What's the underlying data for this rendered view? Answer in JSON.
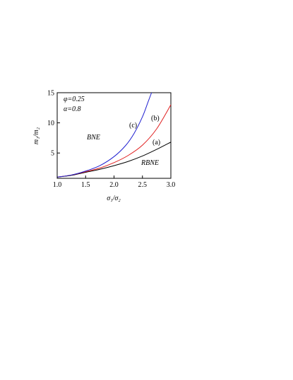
{
  "chart_data": {
    "type": "line",
    "xlabel": "σ₁/σ₂",
    "ylabel": "m₁/m₂",
    "xlim": [
      1.0,
      3.0
    ],
    "ylim": [
      0.8,
      15
    ],
    "xticks": [
      "1.0",
      "1.5",
      "2.0",
      "2.5",
      "3.0"
    ],
    "yticks": [
      "5",
      "10",
      "15"
    ],
    "grid": false,
    "params": [
      "φ=0.25",
      "α=0.8"
    ],
    "regions": [
      "BNE",
      "RBNE"
    ],
    "series": [
      {
        "name": "(a)",
        "color": "#000000",
        "x": [
          1.0,
          1.25,
          1.5,
          1.75,
          2.0,
          2.25,
          2.5,
          2.75,
          3.0
        ],
        "y": [
          1.0,
          1.3,
          1.8,
          2.3,
          2.9,
          3.6,
          4.5,
          5.6,
          6.8
        ]
      },
      {
        "name": "(b)",
        "color": "#e02020",
        "x": [
          1.0,
          1.25,
          1.5,
          1.75,
          2.0,
          2.25,
          2.5,
          2.75,
          3.0
        ],
        "y": [
          1.0,
          1.35,
          1.9,
          2.5,
          3.4,
          4.6,
          6.3,
          9.0,
          13.0
        ]
      },
      {
        "name": "(c)",
        "color": "#2020d0",
        "x": [
          1.0,
          1.25,
          1.5,
          1.75,
          2.0,
          2.2,
          2.35,
          2.5,
          2.6,
          2.66
        ],
        "y": [
          1.0,
          1.35,
          2.0,
          2.9,
          4.4,
          6.2,
          8.2,
          11.0,
          13.5,
          15.0
        ]
      }
    ]
  }
}
